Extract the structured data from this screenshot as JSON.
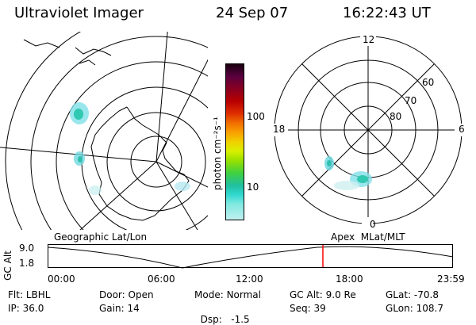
{
  "header": {
    "title": "Ultraviolet Imager",
    "date": "24 Sep 07",
    "time": "16:22:43 UT"
  },
  "geo_panel": {
    "label": "Geographic Lat/Lon"
  },
  "apex_panel": {
    "label": "Apex  MLat/MLT",
    "mlt_labels": {
      "top": "12",
      "left": "18",
      "right": "6",
      "bottom": "0"
    },
    "lat_labels": [
      "60",
      "70",
      "80"
    ]
  },
  "colorbar": {
    "unit_label": "photon cm⁻²s⁻¹",
    "tick_labels": [
      "100",
      "10"
    ],
    "scale": "log",
    "colors": [
      "#1a0010",
      "#5a0040",
      "#8a0020",
      "#b80000",
      "#e03000",
      "#f07000",
      "#f8a000",
      "#f0d000",
      "#d8f000",
      "#98e000",
      "#40d040",
      "#20c0a0",
      "#30d8d0",
      "#80e8e0",
      "#c0f0f0"
    ]
  },
  "altitude_plot": {
    "ylabel": "GC Alt",
    "y_ticks": [
      "9.0",
      "1.8"
    ],
    "x_ticks": [
      "00:00",
      "06:00",
      "12:00",
      "18:00",
      "23:59"
    ],
    "current_time_marker": "16:22",
    "marker_color": "#ff0000"
  },
  "status": {
    "row1": [
      {
        "label": "Flt:",
        "value": "LBHL"
      },
      {
        "label": "Door:",
        "value": "Open"
      },
      {
        "label": "Mode:",
        "value": "Normal"
      },
      {
        "label": "GC Alt:",
        "value": "9.0 Re"
      },
      {
        "label": "GLat:",
        "value": "-70.8"
      }
    ],
    "row2": [
      {
        "label": "IP:",
        "value": "36.0"
      },
      {
        "label": "Gain:",
        "value": "14"
      },
      {
        "label": "Dsp:",
        "value": "  -1.5"
      },
      {
        "label": "Seq:",
        "value": "39"
      },
      {
        "label": "GLon:",
        "value": "108.7"
      }
    ]
  }
}
